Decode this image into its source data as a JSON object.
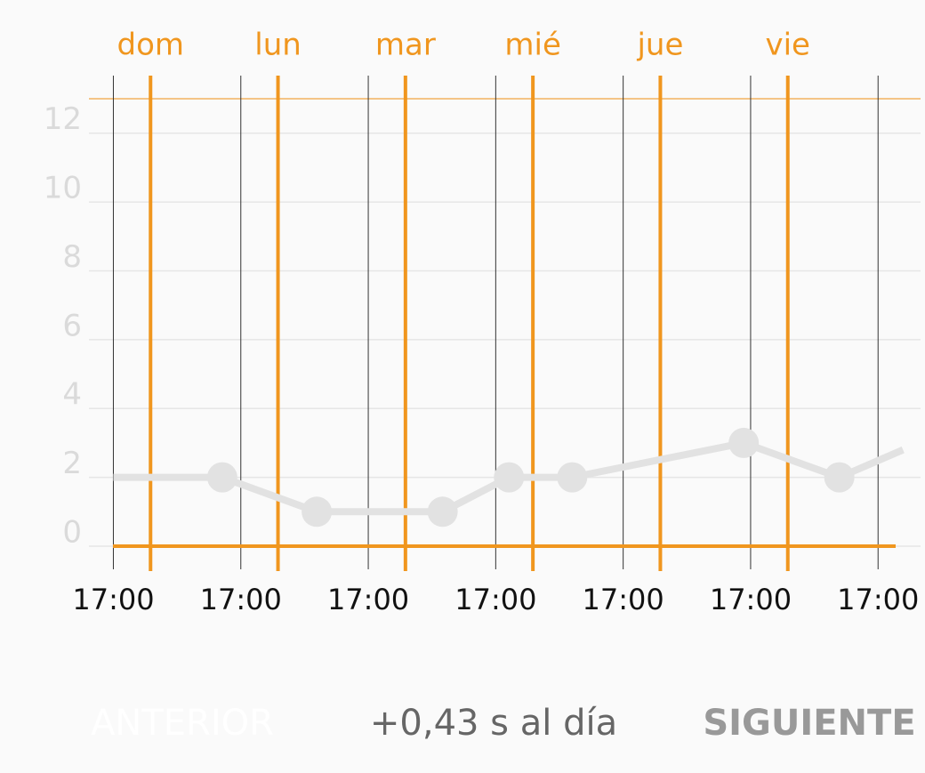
{
  "chart_data": {
    "type": "line",
    "x": [
      0,
      20.5,
      38.3,
      62,
      74.5,
      86.4,
      118.7,
      136.7,
      148.7
    ],
    "series": [
      {
        "color": "#e2e2e2",
        "values": [
          2,
          2,
          1,
          1,
          2,
          2,
          3,
          2,
          2.8
        ]
      }
    ],
    "xlim": [
      -4.6,
      152
    ],
    "xticks": [
      {
        "value": 0,
        "label": "17:00"
      },
      {
        "value": 24,
        "label": "17:00"
      },
      {
        "value": 48,
        "label": "17:00"
      },
      {
        "value": 72,
        "label": "17:00"
      },
      {
        "value": 96,
        "label": "17:00"
      },
      {
        "value": 120,
        "label": "17:00"
      },
      {
        "value": 144,
        "label": "17:00"
      }
    ],
    "day_lines": [
      {
        "value": 7,
        "label": "dom"
      },
      {
        "value": 31,
        "label": "lun"
      },
      {
        "value": 55,
        "label": "mar"
      },
      {
        "value": 79,
        "label": "mié"
      },
      {
        "value": 103,
        "label": "jue"
      },
      {
        "value": 127,
        "label": "vie"
      }
    ],
    "day_color": "#f0961e",
    "ylim": [
      0,
      13
    ],
    "yticks": [
      0,
      2,
      4,
      6,
      8,
      10,
      12
    ],
    "grid": true
  },
  "footer": {
    "previous": "ANTERIOR",
    "rate": "+0,43 s al día",
    "next": "SIGUIENTE"
  }
}
